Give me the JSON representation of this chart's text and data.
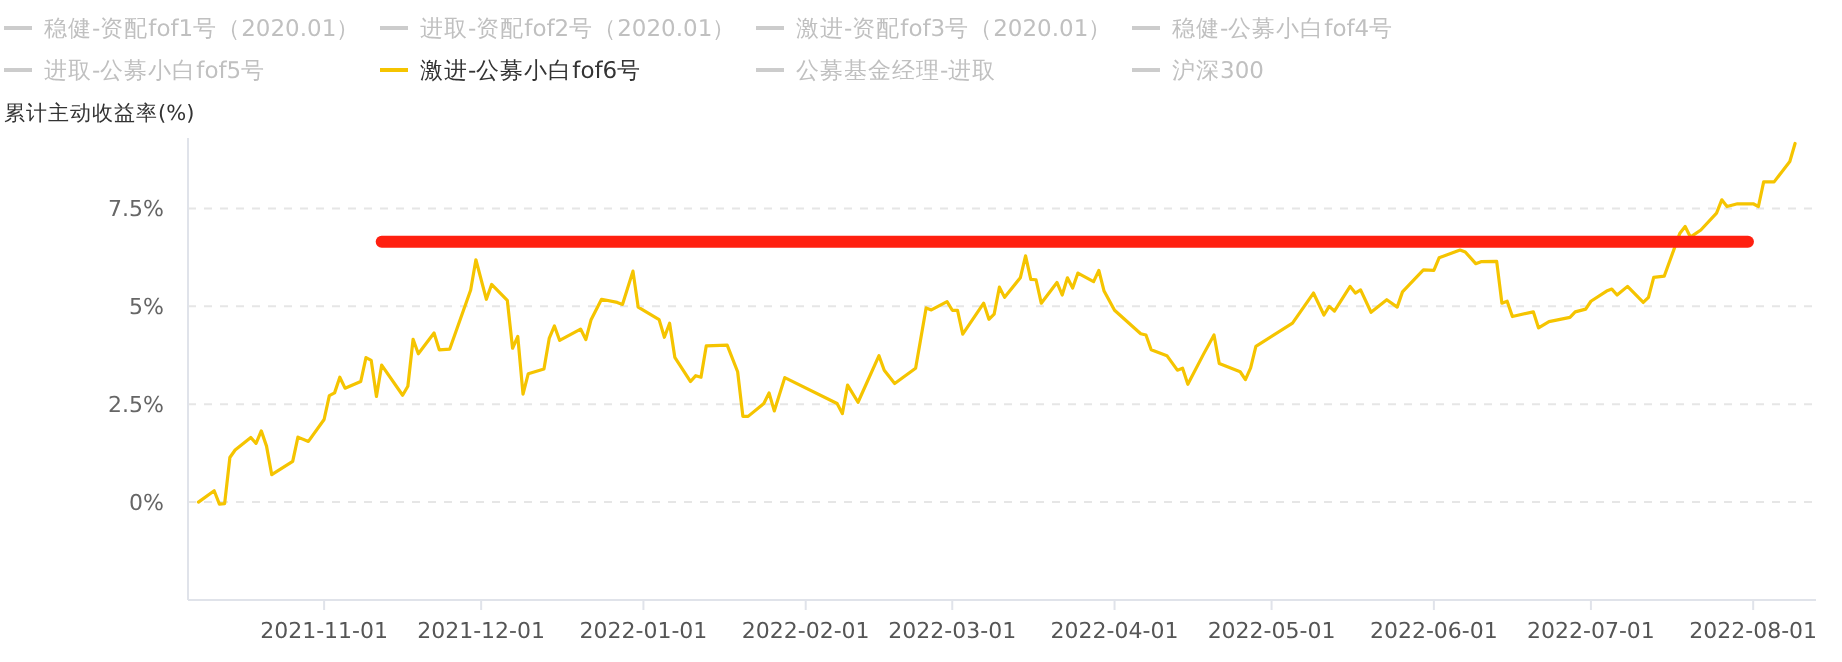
{
  "chart_data": {
    "type": "line",
    "ylabel": "累计主动收益率(%)",
    "legend": "top left",
    "grid": "y",
    "xlim": [
      "2021-10-06",
      "2022-08-13"
    ],
    "ylim": [
      -2.5,
      9.3
    ],
    "xticks": [
      {
        "value": "2021-11-01",
        "label": "2021-11-01"
      },
      {
        "value": "2021-12-01",
        "label": "2021-12-01"
      },
      {
        "value": "2022-01-01",
        "label": "2022-01-01"
      },
      {
        "value": "2022-02-01",
        "label": "2022-02-01"
      },
      {
        "value": "2022-03-01",
        "label": "2022-03-01"
      },
      {
        "value": "2022-04-01",
        "label": "2022-04-01"
      },
      {
        "value": "2022-05-01",
        "label": "2022-05-01"
      },
      {
        "value": "2022-06-01",
        "label": "2022-06-01"
      },
      {
        "value": "2022-07-01",
        "label": "2022-07-01"
      },
      {
        "value": "2022-08-01",
        "label": "2022-08-01"
      }
    ],
    "yticks": [
      {
        "value": 0,
        "label": "0%"
      },
      {
        "value": 2.5,
        "label": "2.5%"
      },
      {
        "value": 5,
        "label": "5%"
      },
      {
        "value": 7.5,
        "label": "7.5%"
      }
    ],
    "series": [
      {
        "name": "稳健-资配fof1号（2020.01）",
        "color": "#cccccc"
      },
      {
        "name": "进取-资配fof2号（2020.01）",
        "color": "#cccccc"
      },
      {
        "name": "激进-资配fof3号（2020.01）",
        "color": "#cccccc"
      },
      {
        "name": "稳健-公募小白fof4号",
        "color": "#cccccc"
      },
      {
        "name": "进取-公募小白fof5号",
        "color": "#cccccc"
      },
      {
        "name": "激进-公募小白fof6号",
        "color": "#f5c400",
        "x": [
          "2021-10-08",
          "2021-10-11",
          "2021-10-12",
          "2021-10-13",
          "2021-10-14",
          "2021-10-15",
          "2021-10-18",
          "2021-10-19",
          "2021-10-20",
          "2021-10-21",
          "2021-10-22",
          "2021-10-26",
          "2021-10-27",
          "2021-10-29",
          "2021-11-01",
          "2021-11-02",
          "2021-11-03",
          "2021-11-04",
          "2021-11-05",
          "2021-11-08",
          "2021-11-09",
          "2021-11-10",
          "2021-11-11",
          "2021-11-12",
          "2021-11-16",
          "2021-11-17",
          "2021-11-18",
          "2021-11-19",
          "2021-11-22",
          "2021-11-23",
          "2021-11-25",
          "2021-11-29",
          "2021-11-30",
          "2021-12-02",
          "2021-12-03",
          "2021-12-06",
          "2021-12-07",
          "2021-12-08",
          "2021-12-09",
          "2021-12-10",
          "2021-12-13",
          "2021-12-14",
          "2021-12-15",
          "2021-12-16",
          "2021-12-20",
          "2021-12-21",
          "2021-12-22",
          "2021-12-24",
          "2021-12-27",
          "2021-12-28",
          "2021-12-30",
          "2021-12-31",
          "2022-01-04",
          "2022-01-05",
          "2022-01-06",
          "2022-01-07",
          "2022-01-10",
          "2022-01-11",
          "2022-01-12",
          "2022-01-13",
          "2022-01-17",
          "2022-01-19",
          "2022-01-20",
          "2022-01-21",
          "2022-01-24",
          "2022-01-25",
          "2022-01-26",
          "2022-01-28",
          "2022-02-07",
          "2022-02-08",
          "2022-02-09",
          "2022-02-11",
          "2022-02-15",
          "2022-02-16",
          "2022-02-18",
          "2022-02-22",
          "2022-02-24",
          "2022-02-25",
          "2022-02-28",
          "2022-03-01",
          "2022-03-02",
          "2022-03-03",
          "2022-03-07",
          "2022-03-08",
          "2022-03-09",
          "2022-03-10",
          "2022-03-11",
          "2022-03-14",
          "2022-03-15",
          "2022-03-16",
          "2022-03-17",
          "2022-03-18",
          "2022-03-21",
          "2022-03-22",
          "2022-03-23",
          "2022-03-24",
          "2022-03-25",
          "2022-03-28",
          "2022-03-29",
          "2022-03-30",
          "2022-04-01",
          "2022-04-06",
          "2022-04-07",
          "2022-04-08",
          "2022-04-11",
          "2022-04-13",
          "2022-04-14",
          "2022-04-15",
          "2022-04-18",
          "2022-04-20",
          "2022-04-21",
          "2022-04-25",
          "2022-04-26",
          "2022-04-27",
          "2022-04-28",
          "2022-05-05",
          "2022-05-09",
          "2022-05-11",
          "2022-05-12",
          "2022-05-13",
          "2022-05-16",
          "2022-05-17",
          "2022-05-18",
          "2022-05-20",
          "2022-05-23",
          "2022-05-25",
          "2022-05-26",
          "2022-05-30",
          "2022-06-01",
          "2022-06-02",
          "2022-06-06",
          "2022-06-07",
          "2022-06-09",
          "2022-06-10",
          "2022-06-13",
          "2022-06-14",
          "2022-06-15",
          "2022-06-16",
          "2022-06-20",
          "2022-06-21",
          "2022-06-23",
          "2022-06-27",
          "2022-06-28",
          "2022-06-30",
          "2022-07-01",
          "2022-07-04",
          "2022-07-05",
          "2022-07-06",
          "2022-07-08",
          "2022-07-11",
          "2022-07-12",
          "2022-07-13",
          "2022-07-15",
          "2022-07-18",
          "2022-07-19",
          "2022-07-20",
          "2022-07-22",
          "2022-07-25",
          "2022-07-26",
          "2022-07-27",
          "2022-07-29",
          "2022-08-01",
          "2022-08-02",
          "2022-08-03",
          "2022-08-05",
          "2022-08-08",
          "2022-08-09"
        ],
        "values": [
          0.0,
          0.29,
          -0.05,
          -0.04,
          1.14,
          1.33,
          1.65,
          1.5,
          1.82,
          1.43,
          0.7,
          1.04,
          1.66,
          1.55,
          2.11,
          2.72,
          2.79,
          3.19,
          2.91,
          3.08,
          3.69,
          3.62,
          2.7,
          3.5,
          2.73,
          2.96,
          4.16,
          3.79,
          4.32,
          3.89,
          3.91,
          5.42,
          6.19,
          5.18,
          5.56,
          5.15,
          3.93,
          4.23,
          2.76,
          3.28,
          3.4,
          4.18,
          4.5,
          4.13,
          4.42,
          4.15,
          4.66,
          5.18,
          5.1,
          5.05,
          5.9,
          4.98,
          4.66,
          4.21,
          4.57,
          3.7,
          3.08,
          3.23,
          3.19,
          3.99,
          4.01,
          3.33,
          2.19,
          2.19,
          2.52,
          2.79,
          2.33,
          3.18,
          2.52,
          2.26,
          2.99,
          2.55,
          3.74,
          3.37,
          3.03,
          3.42,
          4.96,
          4.91,
          5.12,
          4.9,
          4.9,
          4.29,
          5.08,
          4.67,
          4.8,
          5.49,
          5.23,
          5.73,
          6.29,
          5.69,
          5.68,
          5.08,
          5.61,
          5.29,
          5.73,
          5.47,
          5.85,
          5.63,
          5.92,
          5.39,
          4.9,
          4.3,
          4.27,
          3.89,
          3.74,
          3.37,
          3.42,
          3.01,
          3.78,
          4.27,
          3.54,
          3.33,
          3.13,
          3.43,
          3.98,
          4.57,
          5.34,
          4.78,
          5.0,
          4.88,
          5.51,
          5.34,
          5.42,
          4.85,
          5.17,
          4.98,
          5.37,
          5.93,
          5.92,
          6.24,
          6.44,
          6.39,
          6.09,
          6.14,
          6.15,
          5.08,
          5.13,
          4.74,
          4.86,
          4.45,
          4.61,
          4.72,
          4.86,
          4.93,
          5.13,
          5.39,
          5.44,
          5.29,
          5.51,
          5.1,
          5.23,
          5.74,
          5.77,
          6.87,
          7.04,
          6.77,
          6.95,
          7.38,
          7.72,
          7.55,
          7.62,
          7.62,
          7.55,
          8.18,
          8.18,
          8.7,
          9.16
        ]
      },
      {
        "name": "公募基金经理-进取",
        "color": "#cccccc"
      },
      {
        "name": "沪深300",
        "color": "#cccccc"
      },
      {
        "type": "line",
        "color": "#ff2010",
        "x": [
          "2021-11-12",
          "2022-07-31"
        ],
        "values": [
          6.65,
          6.65
        ]
      }
    ]
  }
}
